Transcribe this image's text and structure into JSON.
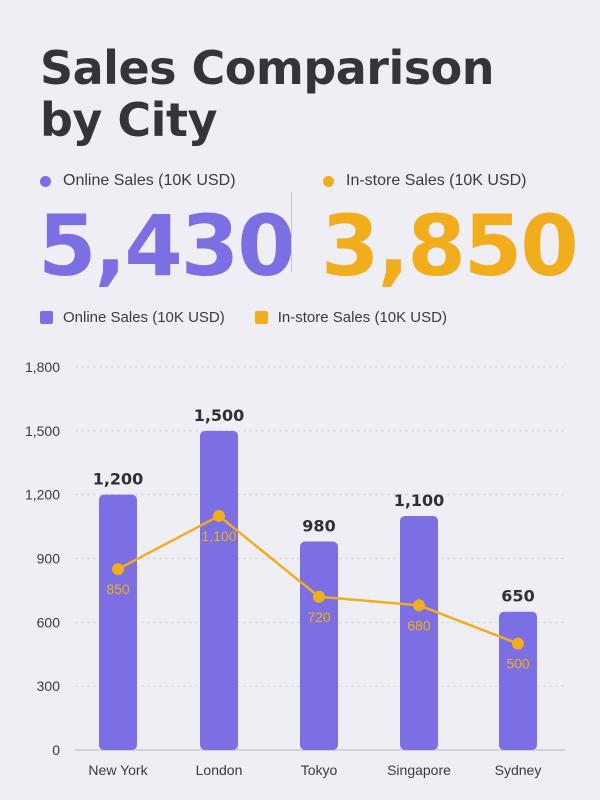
{
  "title": "Sales Comparison by City",
  "kpis": [
    {
      "label": "Online Sales (10K USD)",
      "value": "5,430",
      "color": "#7b6fe3"
    },
    {
      "label": "In-store Sales (10K USD)",
      "value": "3,850",
      "color": "#f2ad1c"
    }
  ],
  "legend": [
    {
      "label": "Online Sales (10K USD)",
      "color": "#7b6fe3"
    },
    {
      "label": "In-store Sales (10K USD)",
      "color": "#f2ad1c"
    }
  ],
  "chart_data": {
    "type": "bar",
    "categories": [
      "New York",
      "London",
      "Tokyo",
      "Singapore",
      "Sydney"
    ],
    "series": [
      {
        "name": "Online Sales (10K USD)",
        "type": "bar",
        "values": [
          1200,
          1500,
          980,
          1100,
          650
        ],
        "labels": [
          "1,200",
          "1,500",
          "980",
          "1,100",
          "650"
        ],
        "color": "#7b6fe3"
      },
      {
        "name": "In-store Sales (10K USD)",
        "type": "line",
        "values": [
          850,
          1100,
          720,
          680,
          500
        ],
        "labels": [
          "850",
          "1,100",
          "720",
          "680",
          "500"
        ],
        "color": "#f2ad1c"
      }
    ],
    "ylim": [
      0,
      1800
    ],
    "yticks": [
      0,
      300,
      600,
      900,
      1200,
      1500,
      1800
    ],
    "ytick_labels": [
      "0",
      "300",
      "600",
      "900",
      "1,200",
      "1,500",
      "1,800"
    ],
    "grid": true,
    "legend_position": "top-left"
  }
}
